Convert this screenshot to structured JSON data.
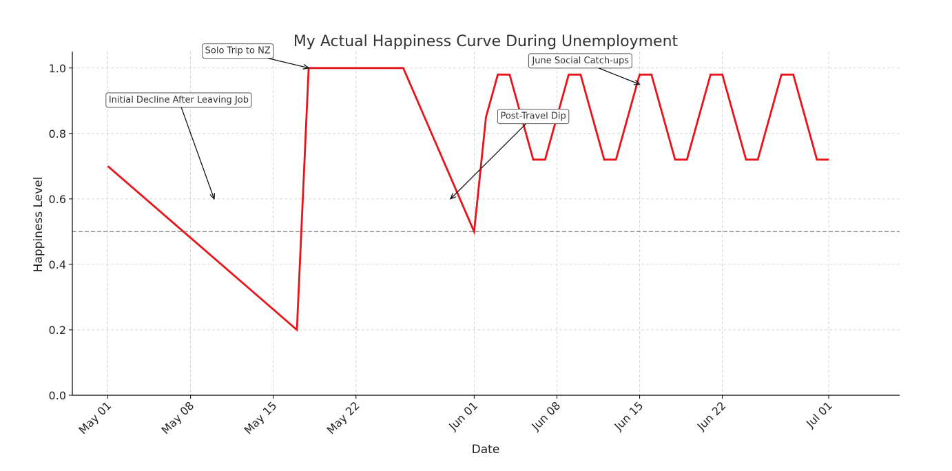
{
  "chart_data": {
    "type": "line",
    "title": "My Actual Happiness Curve During Unemployment",
    "xlabel": "Date",
    "ylabel": "Happiness Level",
    "xlim": [
      "2023-04-28",
      "2023-07-07"
    ],
    "ylim": [
      0,
      1.05
    ],
    "x_ticks": [
      {
        "date": "2023-05-01",
        "label": "May 01"
      },
      {
        "date": "2023-05-08",
        "label": "May 08"
      },
      {
        "date": "2023-05-15",
        "label": "May 15"
      },
      {
        "date": "2023-05-22",
        "label": "May 22"
      },
      {
        "date": "2023-06-01",
        "label": "Jun 01"
      },
      {
        "date": "2023-06-08",
        "label": "Jun 08"
      },
      {
        "date": "2023-06-15",
        "label": "Jun 15"
      },
      {
        "date": "2023-06-22",
        "label": "Jun 22"
      },
      {
        "date": "2023-07-01",
        "label": "Jul 01"
      }
    ],
    "y_ticks": [
      {
        "value": 0.0,
        "label": "0.0"
      },
      {
        "value": 0.2,
        "label": "0.2"
      },
      {
        "value": 0.4,
        "label": "0.4"
      },
      {
        "value": 0.6,
        "label": "0.6"
      },
      {
        "value": 0.8,
        "label": "0.8"
      },
      {
        "value": 1.0,
        "label": "1.0"
      }
    ],
    "grid": true,
    "reference_line": {
      "y": 0.5,
      "style": "dashed",
      "color": "#888888"
    },
    "series": [
      {
        "color": "#e8141a",
        "points": [
          {
            "x": "2023-05-01",
            "y": 0.7
          },
          {
            "x": "2023-05-17",
            "y": 0.2
          },
          {
            "x": "2023-05-18",
            "y": 1.0
          },
          {
            "x": "2023-05-26",
            "y": 1.0
          },
          {
            "x": "2023-06-01",
            "y": 0.5
          },
          {
            "x": "2023-06-02",
            "y": 0.85
          },
          {
            "x": "2023-06-03",
            "y": 0.98
          },
          {
            "x": "2023-06-04",
            "y": 0.98
          },
          {
            "x": "2023-06-06",
            "y": 0.72
          },
          {
            "x": "2023-06-07",
            "y": 0.72
          },
          {
            "x": "2023-06-09",
            "y": 0.98
          },
          {
            "x": "2023-06-10",
            "y": 0.98
          },
          {
            "x": "2023-06-12",
            "y": 0.72
          },
          {
            "x": "2023-06-13",
            "y": 0.72
          },
          {
            "x": "2023-06-15",
            "y": 0.98
          },
          {
            "x": "2023-06-16",
            "y": 0.98
          },
          {
            "x": "2023-06-18",
            "y": 0.72
          },
          {
            "x": "2023-06-19",
            "y": 0.72
          },
          {
            "x": "2023-06-21",
            "y": 0.98
          },
          {
            "x": "2023-06-22",
            "y": 0.98
          },
          {
            "x": "2023-06-24",
            "y": 0.72
          },
          {
            "x": "2023-06-25",
            "y": 0.72
          },
          {
            "x": "2023-06-27",
            "y": 0.98
          },
          {
            "x": "2023-06-28",
            "y": 0.98
          },
          {
            "x": "2023-06-30",
            "y": 0.72
          },
          {
            "x": "2023-07-01",
            "y": 0.72
          }
        ]
      }
    ],
    "annotations": [
      {
        "text": "Initial Decline After Leaving Job",
        "text_x": "2023-05-07",
        "text_y": 0.905,
        "arrow_x": "2023-05-10",
        "arrow_y": 0.6
      },
      {
        "text": "Solo Trip to NZ",
        "text_x": "2023-05-12",
        "text_y": 1.055,
        "arrow_x": "2023-05-18",
        "arrow_y": 1.0
      },
      {
        "text": "Post-Travel Dip",
        "text_x": "2023-06-06",
        "text_y": 0.855,
        "arrow_x": "2023-05-30",
        "arrow_y": 0.6
      },
      {
        "text": "June Social Catch-ups",
        "text_x": "2023-06-10",
        "text_y": 1.025,
        "arrow_x": "2023-06-15",
        "arrow_y": 0.95
      }
    ]
  }
}
